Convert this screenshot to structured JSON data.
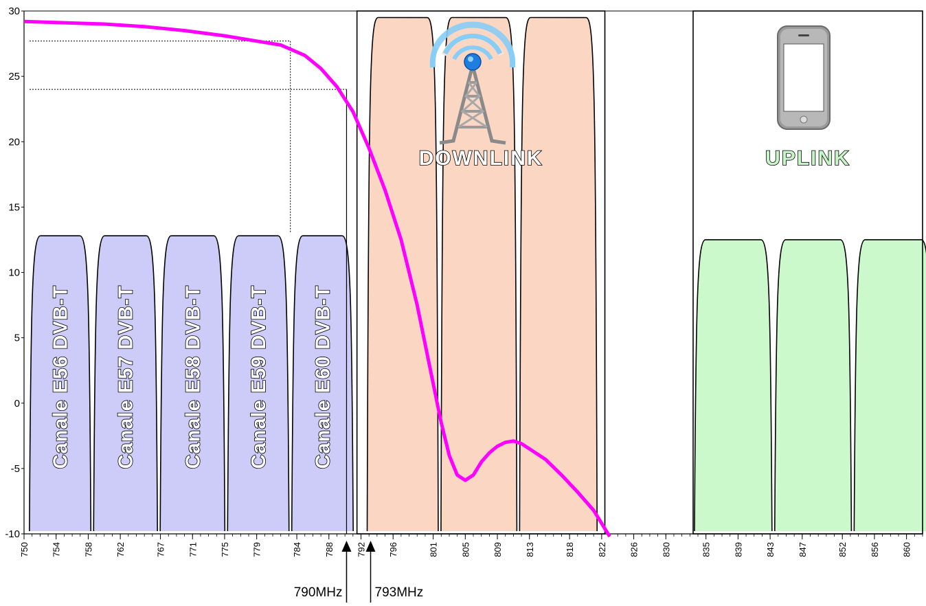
{
  "chart_data": {
    "type": "area",
    "ylim": [
      -10,
      30
    ],
    "y_ticks": [
      "30",
      "25",
      "20",
      "15",
      "10",
      "5",
      "0",
      "-5",
      "-10"
    ],
    "xlim": [
      750,
      862
    ],
    "x_ticks": [
      "750",
      "754",
      "758",
      "762",
      "767",
      "771",
      "775",
      "779",
      "784",
      "788",
      "792",
      "796",
      "801",
      "805",
      "809",
      "813",
      "818",
      "822",
      "826",
      "830",
      "835",
      "839",
      "843",
      "847",
      "852",
      "856",
      "860"
    ],
    "dvbt_channels": [
      {
        "label": "Canale E56 DVB-T",
        "from": 750.5,
        "to": 758.5,
        "level": 12.8
      },
      {
        "label": "Canale E57 DVB-T",
        "from": 758.5,
        "to": 766.8,
        "level": 12.8
      },
      {
        "label": "Canale E58 DVB-T",
        "from": 766.8,
        "to": 775.2,
        "level": 12.8
      },
      {
        "label": "Canale E59 DVB-T",
        "from": 775.2,
        "to": 783.2,
        "level": 12.8
      },
      {
        "label": "Canale E60 DVB-T",
        "from": 783.2,
        "to": 791.2,
        "level": 12.8
      }
    ],
    "downlink_blocks": [
      {
        "from": 792.6,
        "to": 801.8,
        "level": 29.5
      },
      {
        "from": 801.8,
        "to": 811.6,
        "level": 29.5
      },
      {
        "from": 811.6,
        "to": 821.6,
        "level": 29.5
      }
    ],
    "uplink_blocks": [
      {
        "from": 833.4,
        "to": 843.4,
        "level": 12.5
      },
      {
        "from": 843.4,
        "to": 853.3,
        "level": 12.5
      },
      {
        "from": 853.3,
        "to": 863.4,
        "level": 12.5
      }
    ],
    "downlink_box": [
      791.5,
      822.4
    ],
    "uplink_box": [
      833.4,
      862
    ],
    "downlink_label": "DOWNLINK",
    "uplink_label": "UPLINK",
    "markers": [
      {
        "x": 790.2,
        "label": "790MHz"
      },
      {
        "x": 793.2,
        "label": "793MHz"
      }
    ],
    "filter_curve": {
      "name": "",
      "color": "#ff00ff",
      "points": [
        [
          750,
          29.2
        ],
        [
          755,
          29.1
        ],
        [
          760,
          29
        ],
        [
          765,
          28.8
        ],
        [
          770,
          28.5
        ],
        [
          775,
          28.1
        ],
        [
          779,
          27.7
        ],
        [
          782,
          27.4
        ],
        [
          785,
          26.6
        ],
        [
          787,
          25.6
        ],
        [
          789,
          24.2
        ],
        [
          791,
          22.3
        ],
        [
          793,
          19.5
        ],
        [
          795,
          16.3
        ],
        [
          797,
          12.5
        ],
        [
          799,
          7.5
        ],
        [
          801,
          1.5
        ],
        [
          802,
          -1.5
        ],
        [
          803,
          -4
        ],
        [
          804,
          -5.5
        ],
        [
          805,
          -5.9
        ],
        [
          806,
          -5.5
        ],
        [
          807,
          -4.5
        ],
        [
          808,
          -3.8
        ],
        [
          809,
          -3.3
        ],
        [
          810,
          -3
        ],
        [
          811,
          -2.9
        ],
        [
          812,
          -3.1
        ],
        [
          813,
          -3.5
        ],
        [
          815,
          -4.3
        ],
        [
          817,
          -5.5
        ],
        [
          819,
          -6.8
        ],
        [
          821,
          -8.2
        ],
        [
          823,
          -10.2
        ]
      ]
    },
    "reference_lines": [
      {
        "y": 27.7,
        "x_end": 783.2,
        "vertical": true
      },
      {
        "y": 24.0,
        "x_end": 790.2,
        "vertical": false
      }
    ],
    "colors": {
      "dvbt_fill": "#cdccf8",
      "downlink_fill": "#fbd6c3",
      "uplink_fill": "#ccf9cc",
      "uplink_text": "#c8f5c8",
      "downlink_text": "#ffffff"
    }
  }
}
